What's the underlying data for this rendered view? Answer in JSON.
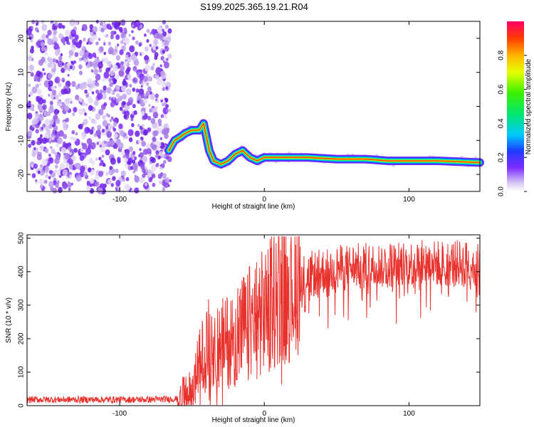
{
  "title": "S199.2025.365.19.21.R04",
  "chart_data": [
    {
      "type": "heatmap",
      "name": "spectrogram",
      "xlabel": "Height of straight line (km)",
      "ylabel": "Frequency (Hz)",
      "xlim": [
        -164,
        149
      ],
      "ylim": [
        -25,
        25
      ],
      "xticks": [
        -100,
        0,
        100
      ],
      "yticks": [
        20,
        10,
        0,
        -10,
        -20
      ],
      "noise_region_x": [
        -164,
        -64
      ],
      "signal_track": [
        {
          "x": -66,
          "y": -13
        },
        {
          "x": -62,
          "y": -10
        },
        {
          "x": -58,
          "y": -9
        },
        {
          "x": -55,
          "y": -8
        },
        {
          "x": -50,
          "y": -7
        },
        {
          "x": -45,
          "y": -7
        },
        {
          "x": -42,
          "y": -5
        },
        {
          "x": -38,
          "y": -13
        },
        {
          "x": -35,
          "y": -16
        },
        {
          "x": -30,
          "y": -17
        },
        {
          "x": -25,
          "y": -16
        },
        {
          "x": -20,
          "y": -14
        },
        {
          "x": -15,
          "y": -13
        },
        {
          "x": -10,
          "y": -15
        },
        {
          "x": -5,
          "y": -16
        },
        {
          "x": 0,
          "y": -15
        },
        {
          "x": 10,
          "y": -15
        },
        {
          "x": 30,
          "y": -15
        },
        {
          "x": 50,
          "y": -15.5
        },
        {
          "x": 70,
          "y": -15.5
        },
        {
          "x": 85,
          "y": -16
        },
        {
          "x": 100,
          "y": -16
        },
        {
          "x": 120,
          "y": -16
        },
        {
          "x": 149,
          "y": -16.5
        }
      ],
      "colorbar": {
        "label": "Normalized spectral amplitude",
        "range": [
          0,
          1
        ],
        "ticks": [
          "0.0",
          "0.2",
          "0.4",
          "0.6",
          "0.8"
        ]
      }
    },
    {
      "type": "line",
      "name": "snr",
      "xlabel": "Height of straight line (km)",
      "ylabel": "SNR (10 * v/v)",
      "xlim": [
        -164,
        149
      ],
      "ylim": [
        0,
        510
      ],
      "xticks": [
        -100,
        0,
        100
      ],
      "yticks": [
        0,
        100,
        200,
        300,
        400,
        500
      ],
      "color": "#e8322e",
      "series": [
        {
          "name": "SNR",
          "x": [
            -164,
            -120,
            -80,
            -60,
            -50,
            -45,
            -40,
            -35,
            -30,
            -20,
            -10,
            0,
            10,
            20,
            30,
            40,
            50,
            60,
            80,
            100,
            120,
            149
          ],
          "y": [
            18,
            18,
            18,
            20,
            45,
            120,
            180,
            200,
            180,
            210,
            250,
            280,
            340,
            370,
            390,
            400,
            410,
            415,
            420,
            425,
            425,
            425
          ]
        }
      ]
    }
  ]
}
